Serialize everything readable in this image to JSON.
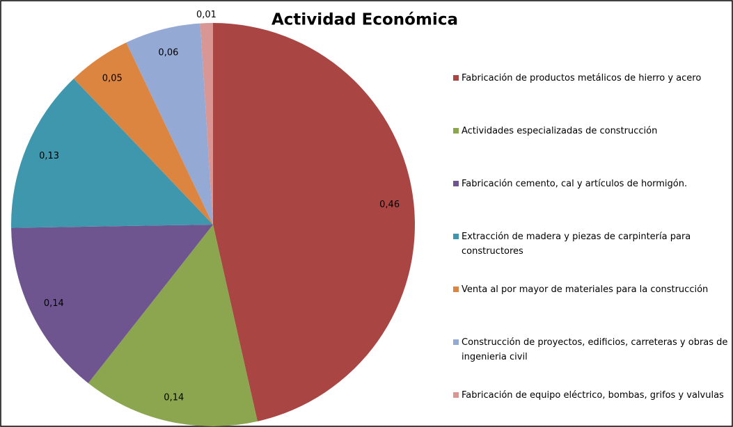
{
  "chart_data": {
    "type": "pie",
    "title": "Actividad Económica",
    "categories": [
      "Fabricación de productos metálicos de hierro y acero",
      "Actividades especializadas de construcción",
      "Fabricación cemento, cal y artículos de hormigón.",
      "Extracción de madera y piezas de carpintería para constructores",
      "Venta al por mayor de materiales para la construcción",
      "Construcción de proyectos, edificios, carreteras y obras de ingenieria civil",
      "Fabricación de equipo eléctrico, bombas, grifos y valvulas"
    ],
    "values": [
      0.46,
      0.14,
      0.14,
      0.13,
      0.05,
      0.06,
      0.01
    ],
    "value_labels": [
      "0,46",
      "0,14",
      "0,14",
      "0,13",
      "0,05",
      "0,06",
      "0,01"
    ],
    "colors": [
      "#a94644",
      "#8ba64f",
      "#6e5590",
      "#3f97ae",
      "#dc8541",
      "#94a9d3",
      "#d89695"
    ],
    "legend": "right"
  }
}
